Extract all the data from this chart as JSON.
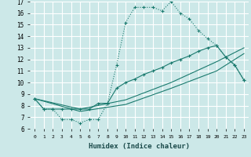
{
  "xlabel": "Humidex (Indice chaleur)",
  "bg_color": "#cce8e8",
  "grid_color": "#ffffff",
  "line_color": "#1a7a6e",
  "xlim": [
    -0.5,
    23.5
  ],
  "ylim": [
    6,
    17
  ],
  "xticks": [
    0,
    1,
    2,
    3,
    4,
    5,
    6,
    7,
    8,
    9,
    10,
    11,
    12,
    13,
    14,
    15,
    16,
    17,
    18,
    19,
    20,
    21,
    22,
    23
  ],
  "yticks": [
    6,
    7,
    8,
    9,
    10,
    11,
    12,
    13,
    14,
    15,
    16,
    17
  ],
  "line1_x": [
    0,
    1,
    2,
    3,
    4,
    5,
    6,
    7,
    8,
    9,
    10,
    11,
    12,
    13,
    14,
    15,
    16,
    17,
    18,
    19,
    20,
    21,
    22,
    23
  ],
  "line1_y": [
    8.6,
    7.7,
    7.7,
    6.8,
    6.8,
    6.5,
    6.8,
    6.8,
    8.2,
    11.5,
    15.2,
    16.5,
    16.5,
    16.5,
    16.2,
    17.0,
    16.0,
    15.5,
    14.5,
    13.8,
    13.2,
    12.2,
    11.5,
    10.2
  ],
  "line2_x": [
    0,
    1,
    2,
    3,
    4,
    5,
    6,
    7,
    8,
    9,
    10,
    11,
    12,
    13,
    14,
    15,
    16,
    17,
    18,
    19,
    20,
    21,
    22,
    23
  ],
  "line2_y": [
    8.6,
    7.7,
    7.7,
    7.7,
    7.7,
    7.7,
    7.7,
    8.2,
    8.2,
    9.5,
    10.0,
    10.3,
    10.7,
    11.0,
    11.3,
    11.7,
    12.0,
    12.3,
    12.7,
    13.0,
    13.2,
    12.2,
    11.5,
    10.2
  ],
  "line3_x": [
    0,
    5,
    10,
    15,
    20,
    23
  ],
  "line3_y": [
    8.6,
    7.7,
    8.5,
    10.0,
    11.8,
    13.0
  ],
  "line4_x": [
    0,
    5,
    10,
    15,
    20,
    23
  ],
  "line4_y": [
    8.6,
    7.5,
    8.1,
    9.5,
    11.0,
    12.5
  ]
}
